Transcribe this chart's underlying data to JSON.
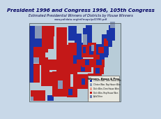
{
  "title_line1": "President 1996 and Congress 1996, 105th Congress",
  "title_line2": "Estimated Presidential Winners of Districts by House Winners",
  "title_line3": "www.polidata.org/ref/maps/pd1996.pdf",
  "bg_color": "#c8d8e8",
  "map_bg": "#b8ccd8",
  "dark_blue": "#1a35a8",
  "med_blue": "#6878b0",
  "light_blue_grey": "#8898b8",
  "light_red": "#e8a090",
  "dark_red": "#c41818",
  "legend_bg": "#e8e8e0",
  "title_color": "#000060",
  "title_fontsize": 5.2,
  "subtitle_fontsize": 3.5,
  "url_fontsize": 2.8,
  "legend_fontsize": 2.6
}
